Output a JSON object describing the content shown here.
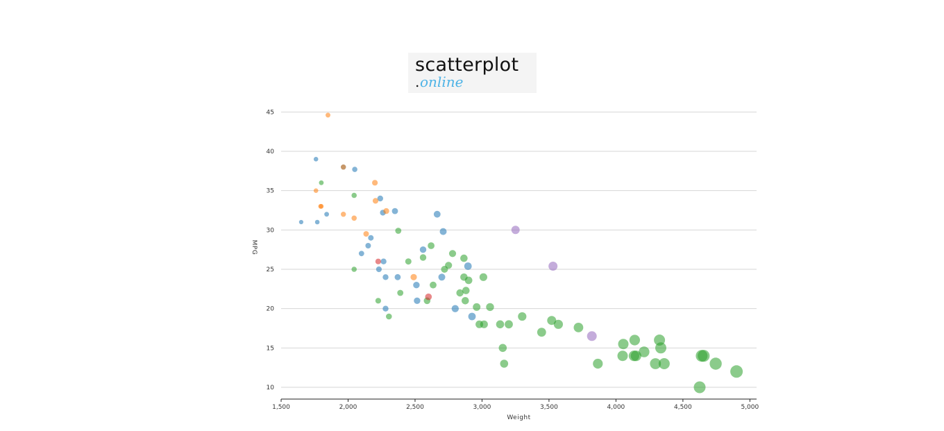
{
  "logo": {
    "main": "scatterplot",
    "dot": ".",
    "sub": "online"
  },
  "chart_data": {
    "type": "scatter",
    "title": "",
    "xlabel": "Weight",
    "ylabel": "MPG",
    "xlim": [
      1500,
      5050
    ],
    "ylim": [
      8.5,
      46
    ],
    "x_ticks": [
      1500,
      2000,
      2500,
      3000,
      3500,
      4000,
      4500,
      5000
    ],
    "x_tick_labels": [
      "1,500",
      "2,000",
      "2,500",
      "3,000",
      "3,500",
      "4,000",
      "4,500",
      "5,000"
    ],
    "y_ticks": [
      10,
      15,
      20,
      25,
      30,
      35,
      40,
      45
    ],
    "y_tick_labels": [
      "10",
      "15",
      "20",
      "25",
      "30",
      "35",
      "40",
      "45"
    ],
    "grid": "horizontal",
    "colors": {
      "blue": "#1f77b4",
      "orange": "#ff7f0e",
      "green": "#2ca02c",
      "red": "#d62728",
      "purple": "#9467bd"
    },
    "series": [
      {
        "color": "#1f77b4",
        "x": [
          1650,
          1760,
          1770,
          1840,
          1965,
          2050,
          2100,
          2150,
          2170,
          2230,
          2240,
          2260,
          2265,
          2280,
          2280,
          2350,
          2370,
          2510,
          2515,
          2560,
          2665,
          2710,
          2700,
          2800,
          2895,
          2925
        ],
        "y": [
          31,
          39,
          31,
          32,
          38,
          37.7,
          27,
          28,
          29,
          25,
          34,
          32.2,
          26,
          24,
          20,
          32.4,
          24,
          23,
          21,
          27.5,
          32,
          29.8,
          24,
          20,
          25.4,
          19
        ]
      },
      {
        "color": "#ff7f0e",
        "x": [
          1850,
          1760,
          1795,
          1800,
          1965,
          1965,
          2045,
          2135,
          2200,
          2205,
          2285,
          2490
        ],
        "y": [
          44.6,
          35,
          33,
          33,
          38,
          32,
          31.5,
          29.5,
          36,
          33.7,
          32.4,
          24
        ]
      },
      {
        "color": "#2ca02c",
        "x": [
          1800,
          2045,
          2045,
          2225,
          2305,
          2375,
          2390,
          2450,
          2560,
          2590,
          2620,
          2635,
          2720,
          2750,
          2780,
          2835,
          2865,
          2865,
          2875,
          2880,
          2900,
          2960,
          2980,
          3010,
          3015,
          3060,
          3135,
          3155,
          3165,
          3200,
          3300,
          3445,
          3520,
          3570,
          3720,
          3865,
          4050,
          4055,
          4135,
          4140,
          4150,
          4210,
          4295,
          4325,
          4335,
          4360,
          4625,
          4640,
          4655,
          4745,
          4900
        ],
        "y": [
          36,
          34.4,
          25,
          21,
          19,
          29.9,
          22,
          26,
          26.5,
          21,
          28,
          23,
          25,
          25.5,
          27,
          22,
          24,
          26.4,
          21,
          22.3,
          23.6,
          20.2,
          18,
          24,
          18,
          20.2,
          18,
          15,
          13,
          18,
          19,
          17,
          18.5,
          18,
          17.6,
          13,
          14,
          15.5,
          14,
          16,
          14,
          14.5,
          13,
          16,
          15,
          13,
          10,
          14,
          14,
          13,
          12
        ]
      },
      {
        "color": "#d62728",
        "x": [
          2225,
          2600
        ],
        "y": [
          26,
          21.5
        ]
      },
      {
        "color": "#9467bd",
        "x": [
          3250,
          3530,
          3820
        ],
        "y": [
          30,
          25.4,
          16.5
        ]
      }
    ]
  }
}
